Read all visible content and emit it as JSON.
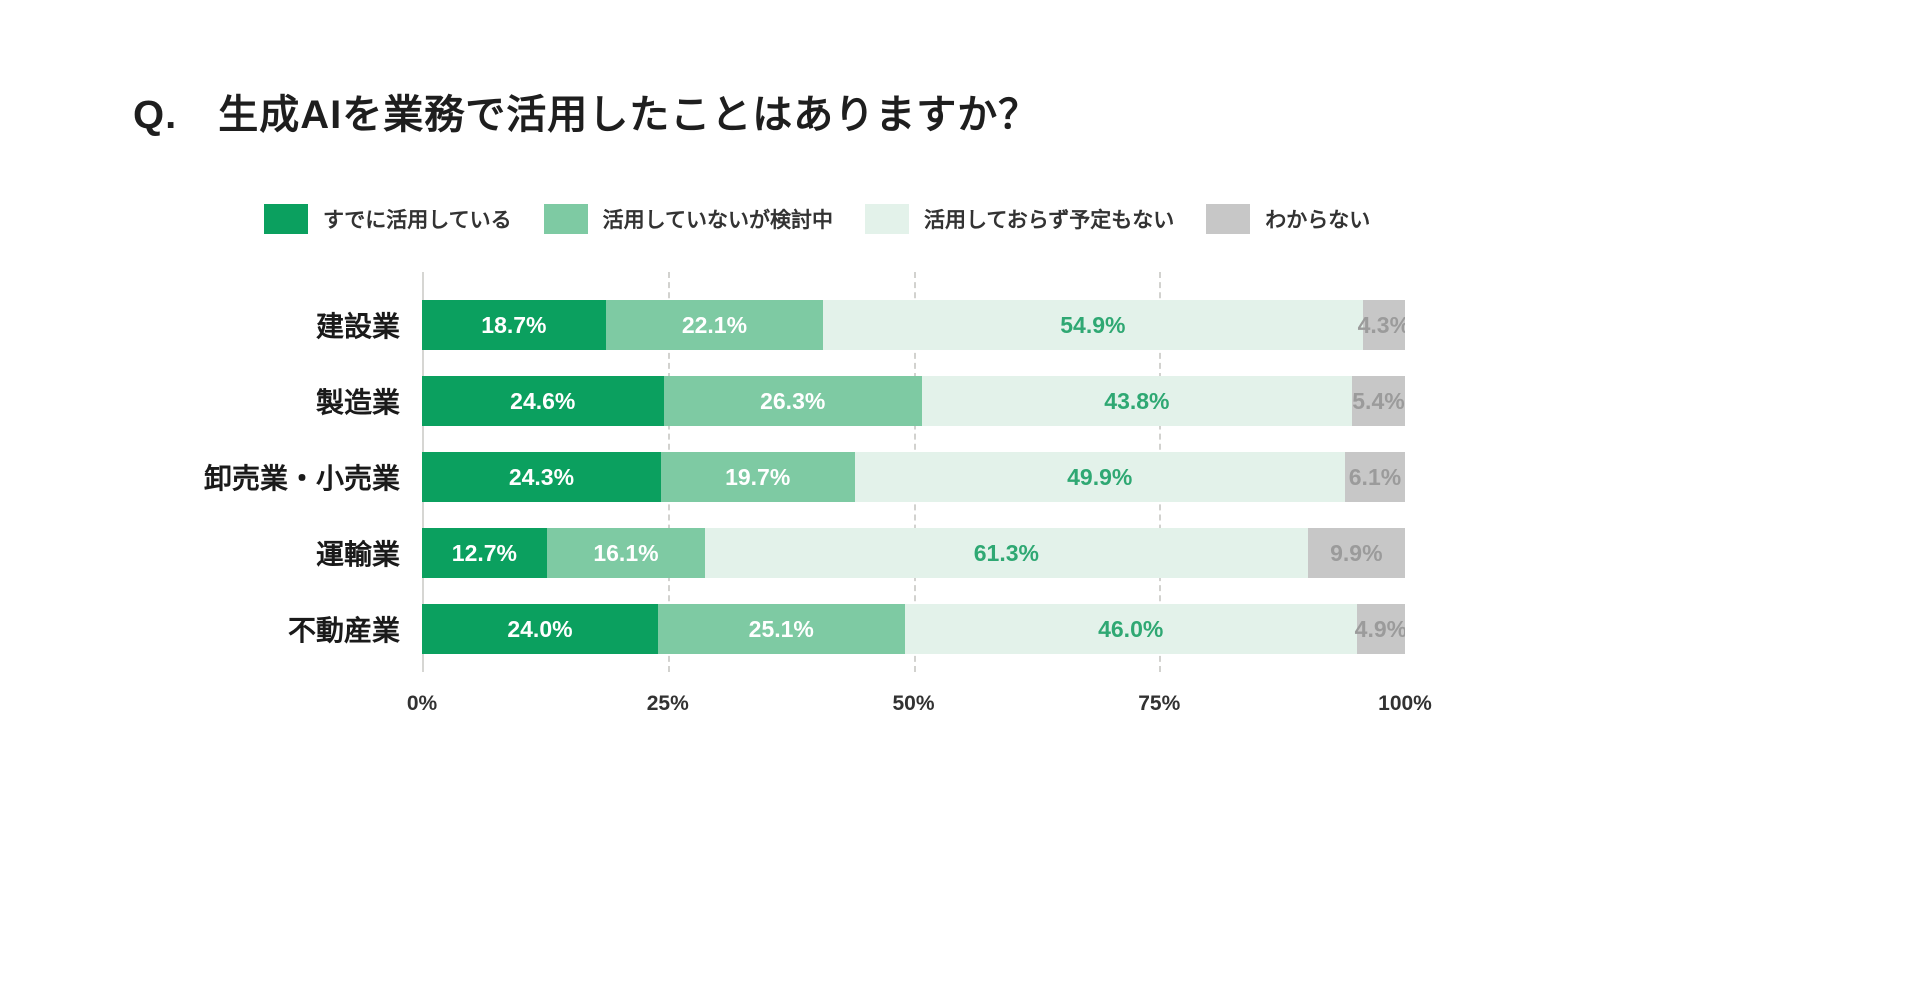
{
  "title": "Q.　生成AIを業務で活用したことはありますか？",
  "chart_data": {
    "type": "bar",
    "variant": "stacked-horizontal-100",
    "title": "Q.　生成AIを業務で活用したことはありますか？",
    "categories": [
      "建設業",
      "製造業",
      "卸売業・小売業",
      "運輸業",
      "不動産業"
    ],
    "series": [
      {
        "name": "すでに活用している",
        "color": "#0ba05f",
        "label_color": "#ffffff",
        "values": [
          18.7,
          24.6,
          24.3,
          12.7,
          24.0
        ]
      },
      {
        "name": "活用していないが検討中",
        "color": "#7ecaa3",
        "label_color": "#ffffff",
        "values": [
          22.1,
          26.3,
          19.7,
          16.1,
          25.1
        ]
      },
      {
        "name": "活用しておらず予定もない",
        "color": "#e3f2ea",
        "label_color": "#2fa873",
        "values": [
          54.9,
          43.8,
          49.9,
          61.3,
          46.0
        ]
      },
      {
        "name": "わからない",
        "color": "#c7c7c7",
        "label_color": "#9b9b9b",
        "values": [
          4.3,
          5.4,
          6.1,
          9.9,
          4.9
        ]
      }
    ],
    "x_ticks": [
      {
        "label": "0%",
        "position": 0
      },
      {
        "label": "25%",
        "position": 25
      },
      {
        "label": "50%",
        "position": 50
      },
      {
        "label": "75%",
        "position": 75
      },
      {
        "label": "100%",
        "position": 100
      }
    ],
    "xlim": [
      0,
      100
    ],
    "grid": "vertical-dashed",
    "gridline_positions": [
      0,
      25,
      50,
      75
    ],
    "legend_position": "top",
    "value_suffix": "%"
  }
}
